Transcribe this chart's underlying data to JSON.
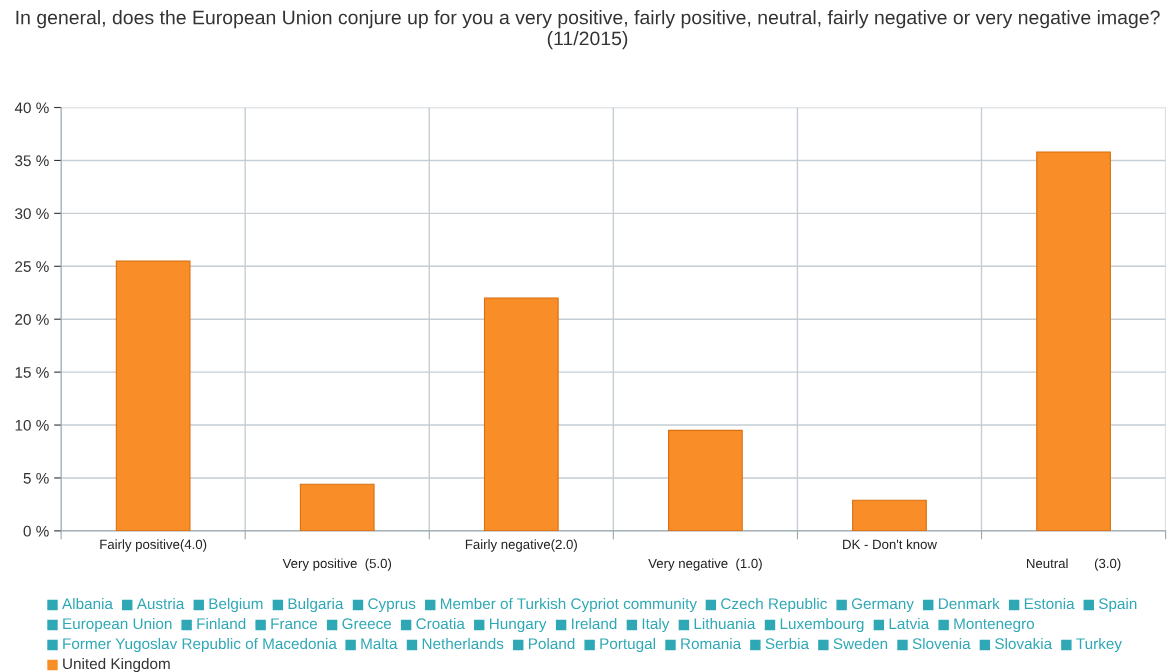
{
  "chart_data": {
    "type": "bar",
    "title": "In general, does the European Union conjure up for you a very positive, fairly positive, neutral, fairly negative or very negative image?\n(11/2015)",
    "categories": [
      "Fairly positive(4.0)",
      "Very positive  (5.0)",
      "Fairly negative(2.0)",
      "Very negative  (1.0)",
      "DK - Don't know",
      "Neutral       (3.0)"
    ],
    "ylim": [
      0,
      40
    ],
    "yticks": [
      {
        "value": 0,
        "label": "0 %"
      },
      {
        "value": 5,
        "label": "5 %"
      },
      {
        "value": 10,
        "label": "10 %"
      },
      {
        "value": 15,
        "label": "15 %"
      },
      {
        "value": 20,
        "label": "20 %"
      },
      {
        "value": 25,
        "label": "25 %"
      },
      {
        "value": 30,
        "label": "30 %"
      },
      {
        "value": 35,
        "label": "35 %"
      },
      {
        "value": 40,
        "label": "40 %"
      }
    ],
    "grid": true,
    "legend": "bottom",
    "series": [
      {
        "name": "Albania",
        "color": "#2fa8b5",
        "values": [
          null,
          null,
          null,
          null,
          null,
          null
        ]
      },
      {
        "name": "Austria",
        "color": "#2fa8b5",
        "values": [
          null,
          null,
          null,
          null,
          null,
          null
        ]
      },
      {
        "name": "Belgium",
        "color": "#2fa8b5",
        "values": [
          null,
          null,
          null,
          null,
          null,
          null
        ]
      },
      {
        "name": "Bulgaria",
        "color": "#2fa8b5",
        "values": [
          null,
          null,
          null,
          null,
          null,
          null
        ]
      },
      {
        "name": "Cyprus",
        "color": "#2fa8b5",
        "values": [
          null,
          null,
          null,
          null,
          null,
          null
        ]
      },
      {
        "name": "Member of Turkish Cypriot community",
        "color": "#2fa8b5",
        "values": [
          null,
          null,
          null,
          null,
          null,
          null
        ]
      },
      {
        "name": "Czech Republic",
        "color": "#2fa8b5",
        "values": [
          null,
          null,
          null,
          null,
          null,
          null
        ]
      },
      {
        "name": "Germany",
        "color": "#2fa8b5",
        "values": [
          null,
          null,
          null,
          null,
          null,
          null
        ]
      },
      {
        "name": "Denmark",
        "color": "#2fa8b5",
        "values": [
          null,
          null,
          null,
          null,
          null,
          null
        ]
      },
      {
        "name": "Estonia",
        "color": "#2fa8b5",
        "values": [
          null,
          null,
          null,
          null,
          null,
          null
        ]
      },
      {
        "name": "Spain",
        "color": "#2fa8b5",
        "values": [
          null,
          null,
          null,
          null,
          null,
          null
        ]
      },
      {
        "name": "European Union",
        "color": "#2fa8b5",
        "values": [
          null,
          null,
          null,
          null,
          null,
          null
        ]
      },
      {
        "name": "Finland",
        "color": "#2fa8b5",
        "values": [
          null,
          null,
          null,
          null,
          null,
          null
        ]
      },
      {
        "name": "France",
        "color": "#2fa8b5",
        "values": [
          null,
          null,
          null,
          null,
          null,
          null
        ]
      },
      {
        "name": "Greece",
        "color": "#2fa8b5",
        "values": [
          null,
          null,
          null,
          null,
          null,
          null
        ]
      },
      {
        "name": "Croatia",
        "color": "#2fa8b5",
        "values": [
          null,
          null,
          null,
          null,
          null,
          null
        ]
      },
      {
        "name": "Hungary",
        "color": "#2fa8b5",
        "values": [
          null,
          null,
          null,
          null,
          null,
          null
        ]
      },
      {
        "name": "Ireland",
        "color": "#2fa8b5",
        "values": [
          null,
          null,
          null,
          null,
          null,
          null
        ]
      },
      {
        "name": "Italy",
        "color": "#2fa8b5",
        "values": [
          null,
          null,
          null,
          null,
          null,
          null
        ]
      },
      {
        "name": "Lithuania",
        "color": "#2fa8b5",
        "values": [
          null,
          null,
          null,
          null,
          null,
          null
        ]
      },
      {
        "name": "Luxembourg",
        "color": "#2fa8b5",
        "values": [
          null,
          null,
          null,
          null,
          null,
          null
        ]
      },
      {
        "name": "Latvia",
        "color": "#2fa8b5",
        "values": [
          null,
          null,
          null,
          null,
          null,
          null
        ]
      },
      {
        "name": "Montenegro",
        "color": "#2fa8b5",
        "values": [
          null,
          null,
          null,
          null,
          null,
          null
        ]
      },
      {
        "name": "Former Yugoslav Republic of Macedonia",
        "color": "#2fa8b5",
        "values": [
          null,
          null,
          null,
          null,
          null,
          null
        ]
      },
      {
        "name": "Malta",
        "color": "#2fa8b5",
        "values": [
          null,
          null,
          null,
          null,
          null,
          null
        ]
      },
      {
        "name": "Netherlands",
        "color": "#2fa8b5",
        "values": [
          null,
          null,
          null,
          null,
          null,
          null
        ]
      },
      {
        "name": "Poland",
        "color": "#2fa8b5",
        "values": [
          null,
          null,
          null,
          null,
          null,
          null
        ]
      },
      {
        "name": "Portugal",
        "color": "#2fa8b5",
        "values": [
          null,
          null,
          null,
          null,
          null,
          null
        ]
      },
      {
        "name": "Romania",
        "color": "#2fa8b5",
        "values": [
          null,
          null,
          null,
          null,
          null,
          null
        ]
      },
      {
        "name": "Serbia",
        "color": "#2fa8b5",
        "values": [
          null,
          null,
          null,
          null,
          null,
          null
        ]
      },
      {
        "name": "Sweden",
        "color": "#2fa8b5",
        "values": [
          null,
          null,
          null,
          null,
          null,
          null
        ]
      },
      {
        "name": "Slovenia",
        "color": "#2fa8b5",
        "values": [
          null,
          null,
          null,
          null,
          null,
          null
        ]
      },
      {
        "name": "Slovakia",
        "color": "#2fa8b5",
        "values": [
          null,
          null,
          null,
          null,
          null,
          null
        ]
      },
      {
        "name": "Turkey",
        "color": "#2fa8b5",
        "values": [
          null,
          null,
          null,
          null,
          null,
          null
        ]
      },
      {
        "name": "United Kingdom",
        "color": "#f98d28",
        "values": [
          25.5,
          4.4,
          22,
          9.5,
          2.9,
          35.8
        ]
      }
    ]
  }
}
